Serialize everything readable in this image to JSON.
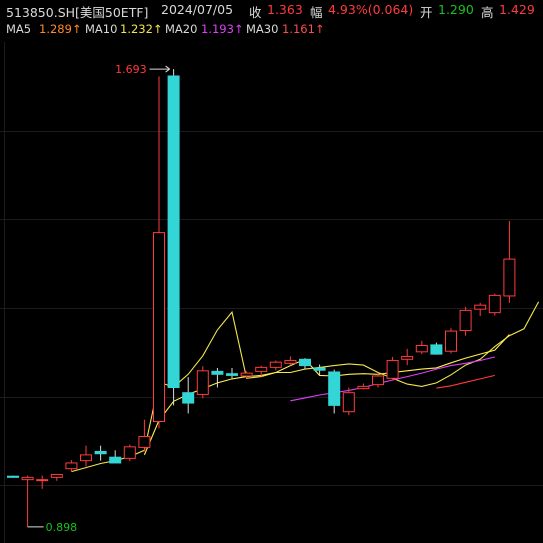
{
  "header": {
    "symbol": "513850.SH[美国50ETF]",
    "date": "2024/07/05",
    "close_label": "收",
    "close_value": "1.363",
    "change_label": "幅",
    "change_value": "4.93%(0.064)",
    "open_label": "开",
    "open_value": "1.290",
    "high_label": "高",
    "high_value": "1.429"
  },
  "ma_legend": {
    "ma5_label": "MA5",
    "ma5_value": "1.289↑",
    "ma10_label": "MA10",
    "ma10_value": "1.232↑",
    "ma20_label": "MA20",
    "ma20_value": "1.193↑",
    "ma30_label": "MA30",
    "ma30_value": "1.161↑"
  },
  "colors": {
    "up": "#ff3b3b",
    "down": "#33d6d6",
    "ma5": "#f2e64d",
    "ma10": "#fff04d",
    "ma20": "#e040fb",
    "ma30": "#ff3b3b",
    "grid": "#1c1c1c"
  },
  "chart_data": {
    "type": "candlestick",
    "grid": true,
    "annotations": {
      "max_label": "1.693",
      "min_label": "0.898"
    },
    "candles": [
      {
        "o": 0.986,
        "h": 0.987,
        "l": 0.984,
        "c": 0.984
      },
      {
        "o": 0.98,
        "h": 0.987,
        "l": 0.898,
        "c": 0.984
      },
      {
        "o": 0.98,
        "h": 0.987,
        "l": 0.964,
        "c": 0.98
      },
      {
        "o": 0.984,
        "h": 0.988,
        "l": 0.978,
        "c": 0.989
      },
      {
        "o": 0.999,
        "h": 1.014,
        "l": 0.994,
        "c": 1.009
      },
      {
        "o": 1.013,
        "h": 1.039,
        "l": 1.003,
        "c": 1.023
      },
      {
        "o": 1.029,
        "h": 1.039,
        "l": 1.013,
        "c": 1.025
      },
      {
        "o": 1.019,
        "h": 1.031,
        "l": 1.009,
        "c": 1.009
      },
      {
        "o": 1.017,
        "h": 1.041,
        "l": 1.012,
        "c": 1.037
      },
      {
        "o": 1.036,
        "h": 1.084,
        "l": 1.029,
        "c": 1.055
      },
      {
        "o": 1.081,
        "h": 1.68,
        "l": 1.069,
        "c": 1.409
      },
      {
        "o": 1.681,
        "h": 1.693,
        "l": 1.109,
        "c": 1.14
      },
      {
        "o": 1.131,
        "h": 1.158,
        "l": 1.095,
        "c": 1.113
      },
      {
        "o": 1.128,
        "h": 1.177,
        "l": 1.121,
        "c": 1.169
      },
      {
        "o": 1.168,
        "h": 1.174,
        "l": 1.14,
        "c": 1.163
      },
      {
        "o": 1.164,
        "h": 1.174,
        "l": 1.156,
        "c": 1.161
      },
      {
        "o": 1.16,
        "h": 1.168,
        "l": 1.156,
        "c": 1.165
      },
      {
        "o": 1.168,
        "h": 1.178,
        "l": 1.159,
        "c": 1.175
      },
      {
        "o": 1.175,
        "h": 1.187,
        "l": 1.17,
        "c": 1.184
      },
      {
        "o": 1.182,
        "h": 1.194,
        "l": 1.178,
        "c": 1.187
      },
      {
        "o": 1.189,
        "h": 1.191,
        "l": 1.172,
        "c": 1.178
      },
      {
        "o": 1.174,
        "h": 1.18,
        "l": 1.162,
        "c": 1.17
      },
      {
        "o": 1.167,
        "h": 1.171,
        "l": 1.095,
        "c": 1.109
      },
      {
        "o": 1.098,
        "h": 1.14,
        "l": 1.092,
        "c": 1.131
      },
      {
        "o": 1.138,
        "h": 1.147,
        "l": 1.137,
        "c": 1.142
      },
      {
        "o": 1.145,
        "h": 1.164,
        "l": 1.14,
        "c": 1.16
      },
      {
        "o": 1.156,
        "h": 1.193,
        "l": 1.152,
        "c": 1.187
      },
      {
        "o": 1.189,
        "h": 1.207,
        "l": 1.179,
        "c": 1.194
      },
      {
        "o": 1.202,
        "h": 1.221,
        "l": 1.198,
        "c": 1.213
      },
      {
        "o": 1.214,
        "h": 1.218,
        "l": 1.197,
        "c": 1.198
      },
      {
        "o": 1.203,
        "h": 1.243,
        "l": 1.199,
        "c": 1.238
      },
      {
        "o": 1.239,
        "h": 1.28,
        "l": 1.23,
        "c": 1.274
      },
      {
        "o": 1.276,
        "h": 1.287,
        "l": 1.264,
        "c": 1.283
      },
      {
        "o": 1.27,
        "h": 1.303,
        "l": 1.265,
        "c": 1.3
      },
      {
        "o": 1.299,
        "h": 1.429,
        "l": 1.287,
        "c": 1.363
      }
    ],
    "ma5": {
      "start": 4,
      "values": [
        0.994,
        1.001,
        1.008,
        1.013,
        1.02,
        1.031,
        1.149,
        1.141,
        1.163,
        1.195,
        1.24,
        1.271,
        1.156,
        1.159,
        1.166,
        1.166,
        1.172,
        1.175,
        1.178,
        1.181,
        1.179,
        1.166,
        1.156,
        1.146,
        1.142,
        1.148,
        1.162,
        1.179,
        1.189,
        1.211,
        1.23,
        1.242,
        1.289
      ]
    },
    "ma10": {
      "start": 9,
      "values": [
        1.023,
        1.083,
        1.116,
        1.128,
        1.138,
        1.148,
        1.155,
        1.159,
        1.161,
        1.166,
        1.178,
        1.189,
        1.161,
        1.16,
        1.163,
        1.164,
        1.163,
        1.166,
        1.169,
        1.172,
        1.174,
        1.183,
        1.191,
        1.198,
        1.205,
        1.232
      ]
    },
    "ma20": {
      "start": 19,
      "values": [
        1.117,
        1.122,
        1.127,
        1.131,
        1.135,
        1.14,
        1.147,
        1.153,
        1.159,
        1.165,
        1.172,
        1.178,
        1.182,
        1.187,
        1.193
      ]
    },
    "ma30": {
      "start": 29,
      "values": [
        1.139,
        1.143,
        1.149,
        1.155,
        1.161
      ]
    },
    "ylim": [
      0.87,
      1.74
    ]
  }
}
